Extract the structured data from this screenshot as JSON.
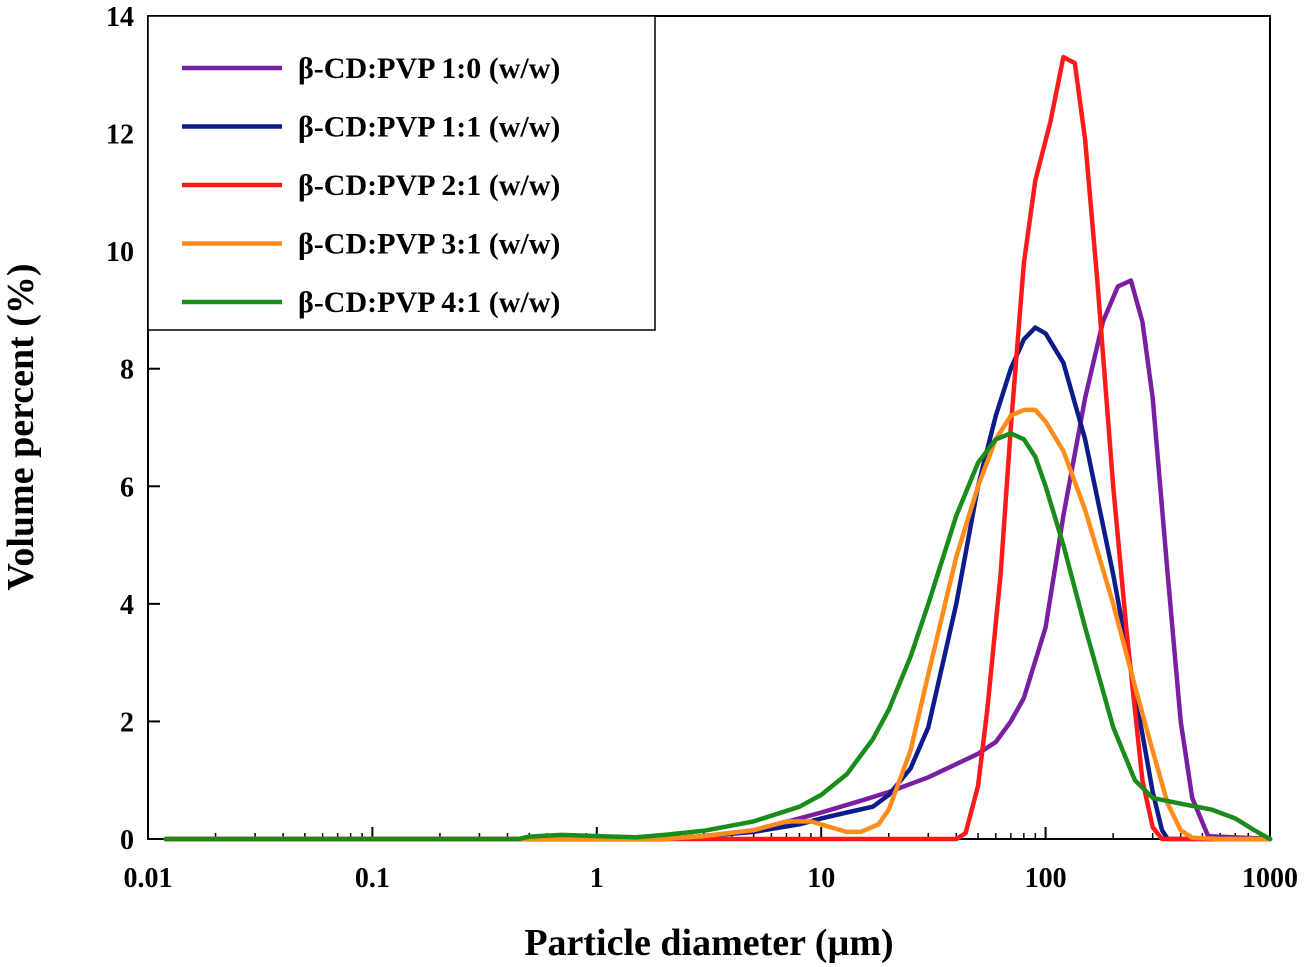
{
  "chart_data": {
    "type": "line",
    "xlabel": "Particle diameter (µm)",
    "ylabel": "Volume percent (%)",
    "x_scale": "log",
    "xlim": [
      0.01,
      1000
    ],
    "ylim": [
      0,
      14
    ],
    "x_ticks": [
      "0.01",
      "0.1",
      "1",
      "10",
      "100",
      "1000"
    ],
    "y_ticks": [
      "0",
      "2",
      "4",
      "6",
      "8",
      "10",
      "12",
      "14"
    ],
    "grid": false,
    "legend_position": "top-left",
    "series": [
      {
        "name": "β-CD:PVP 1:0 (w/w)",
        "color": "#7B1FA2",
        "points": [
          [
            0.012,
            0
          ],
          [
            1,
            0
          ],
          [
            2,
            0
          ],
          [
            3,
            0.05
          ],
          [
            5,
            0.15
          ],
          [
            8,
            0.35
          ],
          [
            10,
            0.45
          ],
          [
            15,
            0.65
          ],
          [
            20,
            0.8
          ],
          [
            30,
            1.05
          ],
          [
            50,
            1.45
          ],
          [
            60,
            1.65
          ],
          [
            70,
            2.0
          ],
          [
            80,
            2.4
          ],
          [
            100,
            3.6
          ],
          [
            120,
            5.5
          ],
          [
            150,
            7.5
          ],
          [
            180,
            8.8
          ],
          [
            210,
            9.4
          ],
          [
            240,
            9.5
          ],
          [
            270,
            8.8
          ],
          [
            300,
            7.5
          ],
          [
            350,
            4.5
          ],
          [
            400,
            2.0
          ],
          [
            450,
            0.7
          ],
          [
            530,
            0.05
          ],
          [
            1000,
            0
          ]
        ]
      },
      {
        "name": "β-CD:PVP 1:1 (w/w)",
        "color": "#0D1B8C",
        "points": [
          [
            0.012,
            0
          ],
          [
            1,
            0
          ],
          [
            2,
            0
          ],
          [
            3,
            0.05
          ],
          [
            5,
            0.12
          ],
          [
            8,
            0.25
          ],
          [
            10,
            0.35
          ],
          [
            13,
            0.45
          ],
          [
            17,
            0.55
          ],
          [
            20,
            0.75
          ],
          [
            25,
            1.2
          ],
          [
            30,
            1.9
          ],
          [
            40,
            4.0
          ],
          [
            50,
            6.0
          ],
          [
            60,
            7.2
          ],
          [
            70,
            8.0
          ],
          [
            80,
            8.5
          ],
          [
            90,
            8.7
          ],
          [
            100,
            8.6
          ],
          [
            120,
            8.1
          ],
          [
            150,
            6.8
          ],
          [
            200,
            4.5
          ],
          [
            250,
            2.5
          ],
          [
            300,
            0.8
          ],
          [
            330,
            0.15
          ],
          [
            350,
            0
          ],
          [
            1000,
            0
          ]
        ]
      },
      {
        "name": "β-CD:PVP 2:1 (w/w)",
        "color": "#FF1A1A",
        "points": [
          [
            0.012,
            0
          ],
          [
            40,
            0
          ],
          [
            44,
            0.1
          ],
          [
            50,
            0.9
          ],
          [
            55,
            2.2
          ],
          [
            63,
            4.5
          ],
          [
            70,
            7.0
          ],
          [
            80,
            9.8
          ],
          [
            90,
            11.2
          ],
          [
            105,
            12.2
          ],
          [
            120,
            13.3
          ],
          [
            135,
            13.2
          ],
          [
            150,
            11.9
          ],
          [
            170,
            9.5
          ],
          [
            200,
            6.0
          ],
          [
            230,
            3.5
          ],
          [
            270,
            1.0
          ],
          [
            300,
            0.2
          ],
          [
            330,
            0
          ],
          [
            1000,
            0
          ]
        ]
      },
      {
        "name": "β-CD:PVP 3:1 (w/w)",
        "color": "#FF8C1A",
        "points": [
          [
            0.012,
            0
          ],
          [
            2,
            0
          ],
          [
            3,
            0.05
          ],
          [
            5,
            0.15
          ],
          [
            7,
            0.3
          ],
          [
            9,
            0.3
          ],
          [
            11,
            0.2
          ],
          [
            13,
            0.12
          ],
          [
            15,
            0.12
          ],
          [
            18,
            0.25
          ],
          [
            20,
            0.5
          ],
          [
            25,
            1.5
          ],
          [
            30,
            2.8
          ],
          [
            40,
            4.8
          ],
          [
            50,
            6.0
          ],
          [
            60,
            6.8
          ],
          [
            70,
            7.2
          ],
          [
            80,
            7.3
          ],
          [
            90,
            7.3
          ],
          [
            100,
            7.1
          ],
          [
            120,
            6.6
          ],
          [
            150,
            5.6
          ],
          [
            200,
            4.0
          ],
          [
            250,
            2.6
          ],
          [
            300,
            1.5
          ],
          [
            350,
            0.6
          ],
          [
            400,
            0.15
          ],
          [
            450,
            0.02
          ],
          [
            600,
            0
          ],
          [
            1000,
            0
          ]
        ]
      },
      {
        "name": "β-CD:PVP 4:1 (w/w)",
        "color": "#1A8C1A",
        "points": [
          [
            0.012,
            0
          ],
          [
            0.45,
            0
          ],
          [
            0.5,
            0.04
          ],
          [
            0.7,
            0.07
          ],
          [
            1,
            0.05
          ],
          [
            1.5,
            0.03
          ],
          [
            2,
            0.07
          ],
          [
            3,
            0.14
          ],
          [
            5,
            0.3
          ],
          [
            8,
            0.55
          ],
          [
            10,
            0.75
          ],
          [
            13,
            1.1
          ],
          [
            17,
            1.7
          ],
          [
            20,
            2.2
          ],
          [
            25,
            3.1
          ],
          [
            30,
            4.0
          ],
          [
            40,
            5.5
          ],
          [
            50,
            6.4
          ],
          [
            60,
            6.8
          ],
          [
            70,
            6.9
          ],
          [
            80,
            6.8
          ],
          [
            90,
            6.5
          ],
          [
            100,
            6.0
          ],
          [
            120,
            5.0
          ],
          [
            150,
            3.6
          ],
          [
            200,
            1.9
          ],
          [
            250,
            1.0
          ],
          [
            300,
            0.7
          ],
          [
            400,
            0.6
          ],
          [
            550,
            0.5
          ],
          [
            700,
            0.35
          ],
          [
            850,
            0.15
          ],
          [
            1000,
            0
          ]
        ]
      }
    ]
  }
}
